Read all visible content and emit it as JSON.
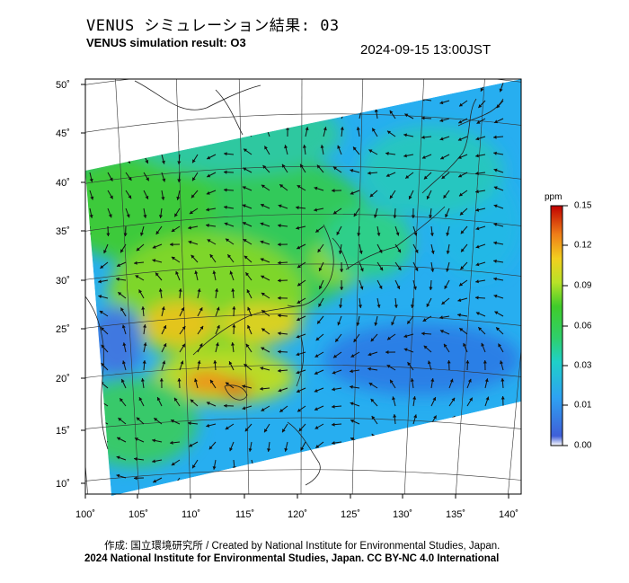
{
  "header": {
    "title_jp": "VENUS シミュレーション結果: 03",
    "title_en": "VENUS simulation result: O3",
    "timestamp": "2024-09-15 13:00JST"
  },
  "map": {
    "lat_ticks": [
      "50˚",
      "45˚",
      "40˚",
      "35˚",
      "30˚",
      "25˚",
      "20˚",
      "15˚",
      "10˚"
    ],
    "lon_ticks": [
      "100˚",
      "105˚",
      "110˚",
      "115˚",
      "120˚",
      "125˚",
      "130˚",
      "135˚",
      "140˚"
    ]
  },
  "colorbar": {
    "unit": "ppm",
    "ticks": [
      "0.15",
      "0.12",
      "0.09",
      "0.06",
      "0.03",
      "0.01",
      "0.00"
    ],
    "colors": [
      "#ffffff",
      "#4c6fe0",
      "#2fa8f5",
      "#20d6b8",
      "#33cc33",
      "#b9e22a",
      "#f2d21f",
      "#f29a1a",
      "#e03a12",
      "#c00000"
    ]
  },
  "footer": {
    "credit": "作成: 国立環境研究所 / Created by National Institute for Environmental Studies, Japan.",
    "license": "2024 National Institute for Environmental Studies, Japan. CC BY-NC 4.0 International"
  }
}
